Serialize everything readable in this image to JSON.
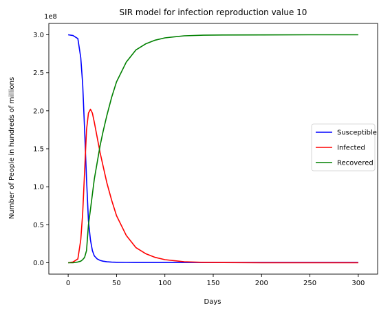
{
  "chart_data": {
    "type": "line",
    "title": "SIR model for infection reproduction value 10",
    "xlabel": "Days",
    "ylabel": "Number of People in hundreds of millions",
    "y_offset_label": "1e8",
    "xlim": [
      -20,
      320
    ],
    "ylim": [
      -0.15,
      3.15
    ],
    "x_ticks": [
      0,
      50,
      100,
      150,
      200,
      250,
      300
    ],
    "x_tick_labels": [
      "0",
      "50",
      "100",
      "150",
      "200",
      "250",
      "300"
    ],
    "y_ticks": [
      0,
      0.5,
      1.0,
      1.5,
      2.0,
      2.5,
      3.0
    ],
    "y_tick_labels": [
      "0.0",
      "0.5",
      "1.0",
      "1.5",
      "2.0",
      "2.5",
      "3.0"
    ],
    "grid": false,
    "legend_position": "center right",
    "x": [
      0,
      5,
      10,
      13,
      15,
      17,
      19,
      21,
      23,
      25,
      27,
      30,
      33,
      36,
      40,
      45,
      50,
      60,
      70,
      80,
      90,
      100,
      120,
      140,
      160,
      200,
      250,
      300
    ],
    "series": [
      {
        "name": "Susceptible",
        "color": "#0000ff",
        "values": [
          3.0,
          2.99,
          2.95,
          2.7,
          2.35,
          1.75,
          1.1,
          0.55,
          0.3,
          0.16,
          0.09,
          0.05,
          0.03,
          0.02,
          0.012,
          0.008,
          0.006,
          0.004,
          0.003,
          0.003,
          0.003,
          0.003,
          0.003,
          0.003,
          0.003,
          0.003,
          0.003,
          0.003
        ]
      },
      {
        "name": "Infected",
        "color": "#ff0000",
        "values": [
          0.0,
          0.01,
          0.05,
          0.3,
          0.65,
          1.2,
          1.75,
          1.97,
          2.02,
          1.97,
          1.85,
          1.65,
          1.45,
          1.28,
          1.05,
          0.82,
          0.62,
          0.36,
          0.2,
          0.12,
          0.07,
          0.04,
          0.013,
          0.005,
          0.002,
          0.0,
          0.0,
          0.0
        ]
      },
      {
        "name": "Recovered",
        "color": "#008000",
        "values": [
          0.0,
          0.0,
          0.01,
          0.02,
          0.04,
          0.07,
          0.16,
          0.5,
          0.7,
          0.9,
          1.1,
          1.32,
          1.54,
          1.72,
          1.94,
          2.18,
          2.38,
          2.64,
          2.8,
          2.88,
          2.93,
          2.96,
          2.987,
          2.995,
          2.998,
          2.999,
          3.0,
          3.0
        ]
      }
    ]
  }
}
